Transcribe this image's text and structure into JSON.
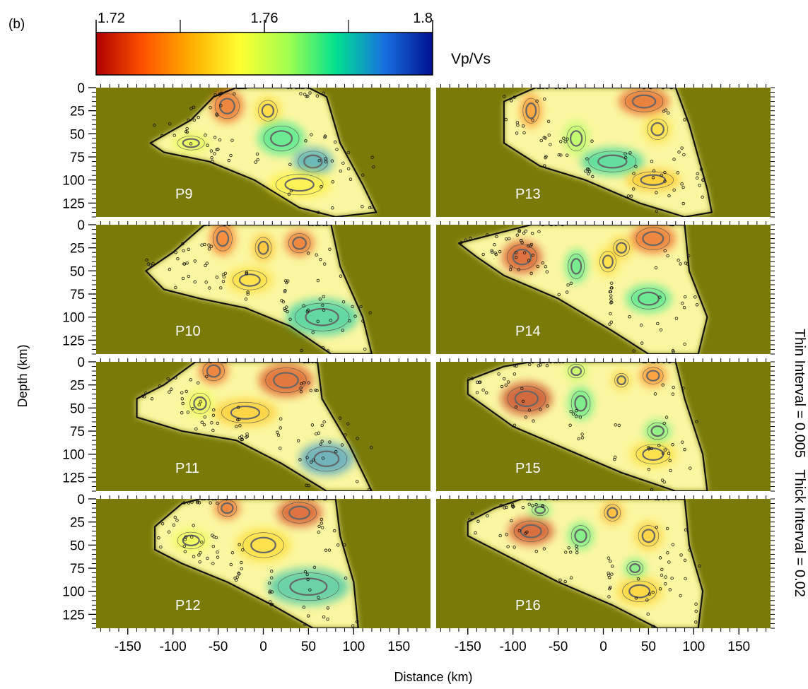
{
  "figure": {
    "label": "(b)",
    "colorbar": {
      "title": "Vp/Vs",
      "min": 1.72,
      "max": 1.8,
      "tick_labels": [
        "1.72",
        "1.76",
        "1.8"
      ],
      "tick_values": [
        1.72,
        1.76,
        1.8
      ],
      "minor_tick_values": [
        1.74,
        1.78
      ],
      "colormap": [
        "#b00000",
        "#ff5500",
        "#ffb000",
        "#ffff30",
        "#a0ff50",
        "#00e090",
        "#1870e0",
        "#001090"
      ]
    },
    "ylabel": "Depth (km)",
    "xlabel": "Distance (km)",
    "side_note": "Thin Interval = 0.005   Thick Interval = 0.02",
    "background_color": "#7a7a08"
  },
  "chart_data": {
    "type": "heatmap",
    "layout": "4 rows x 2 columns of depth cross-sections",
    "x_axis": {
      "range": [
        -185,
        185
      ],
      "tick_values": [
        -150,
        -100,
        -50,
        0,
        50,
        100,
        150
      ],
      "tick_labels": [
        "-150",
        "-100",
        "-50",
        "0",
        "50",
        "100",
        "150"
      ]
    },
    "y_axis": {
      "range": [
        0,
        140
      ],
      "inverted": true,
      "tick_values": [
        0,
        25,
        50,
        75,
        100,
        125
      ],
      "tick_labels": [
        "0",
        "25",
        "50",
        "75",
        "100",
        "125"
      ]
    },
    "panels": [
      {
        "name": "P9",
        "zone_outline": [
          [
            -125,
            60
          ],
          [
            -80,
            35
          ],
          [
            -55,
            10
          ],
          [
            -30,
            0
          ],
          [
            50,
            0
          ],
          [
            70,
            10
          ],
          [
            85,
            60
          ],
          [
            110,
            105
          ],
          [
            125,
            135
          ],
          [
            80,
            140
          ],
          [
            40,
            130
          ],
          [
            -10,
            100
          ],
          [
            -60,
            80
          ],
          [
            -110,
            70
          ]
        ],
        "anomalies": [
          {
            "x": -40,
            "y": 20,
            "rx": 18,
            "ry": 18,
            "value": 1.728
          },
          {
            "x": 5,
            "y": 25,
            "rx": 14,
            "ry": 15,
            "value": 1.747
          },
          {
            "x": 20,
            "y": 55,
            "rx": 26,
            "ry": 18,
            "value": 1.776
          },
          {
            "x": 55,
            "y": 80,
            "rx": 22,
            "ry": 15,
            "value": 1.785
          },
          {
            "x": 40,
            "y": 105,
            "rx": 35,
            "ry": 15,
            "value": 1.752
          },
          {
            "x": -80,
            "y": 60,
            "rx": 20,
            "ry": 10,
            "value": 1.758
          }
        ]
      },
      {
        "name": "P13",
        "zone_outline": [
          [
            -110,
            15
          ],
          [
            -75,
            0
          ],
          [
            80,
            0
          ],
          [
            95,
            40
          ],
          [
            115,
            110
          ],
          [
            120,
            135
          ],
          [
            90,
            140
          ],
          [
            40,
            125
          ],
          [
            -20,
            100
          ],
          [
            -70,
            85
          ],
          [
            -110,
            60
          ]
        ],
        "anomalies": [
          {
            "x": -80,
            "y": 25,
            "rx": 12,
            "ry": 18,
            "value": 1.735
          },
          {
            "x": 45,
            "y": 15,
            "rx": 28,
            "ry": 15,
            "value": 1.727
          },
          {
            "x": -30,
            "y": 55,
            "rx": 14,
            "ry": 18,
            "value": 1.766
          },
          {
            "x": 10,
            "y": 80,
            "rx": 35,
            "ry": 15,
            "value": 1.779
          },
          {
            "x": 55,
            "y": 100,
            "rx": 30,
            "ry": 12,
            "value": 1.744
          },
          {
            "x": 60,
            "y": 45,
            "rx": 15,
            "ry": 15,
            "value": 1.748
          }
        ]
      },
      {
        "name": "P10",
        "zone_outline": [
          [
            -130,
            50
          ],
          [
            -100,
            30
          ],
          [
            -65,
            0
          ],
          [
            75,
            0
          ],
          [
            85,
            45
          ],
          [
            110,
            100
          ],
          [
            120,
            140
          ],
          [
            75,
            140
          ],
          [
            30,
            110
          ],
          [
            -20,
            90
          ],
          [
            -70,
            80
          ],
          [
            -110,
            70
          ]
        ],
        "anomalies": [
          {
            "x": -45,
            "y": 15,
            "rx": 14,
            "ry": 18,
            "value": 1.73
          },
          {
            "x": 40,
            "y": 20,
            "rx": 16,
            "ry": 14,
            "value": 1.728
          },
          {
            "x": 0,
            "y": 25,
            "rx": 12,
            "ry": 15,
            "value": 1.742
          },
          {
            "x": 65,
            "y": 100,
            "rx": 40,
            "ry": 20,
            "value": 1.78
          },
          {
            "x": -15,
            "y": 60,
            "rx": 25,
            "ry": 14,
            "value": 1.748
          }
        ]
      },
      {
        "name": "P14",
        "zone_outline": [
          [
            -160,
            20
          ],
          [
            -120,
            10
          ],
          [
            -80,
            0
          ],
          [
            90,
            0
          ],
          [
            95,
            50
          ],
          [
            115,
            100
          ],
          [
            105,
            140
          ],
          [
            50,
            140
          ],
          [
            10,
            115
          ],
          [
            -50,
            80
          ],
          [
            -110,
            55
          ],
          [
            -140,
            35
          ]
        ],
        "anomalies": [
          {
            "x": -90,
            "y": 35,
            "rx": 22,
            "ry": 18,
            "value": 1.724
          },
          {
            "x": 55,
            "y": 15,
            "rx": 25,
            "ry": 16,
            "value": 1.728
          },
          {
            "x": -30,
            "y": 45,
            "rx": 12,
            "ry": 18,
            "value": 1.775
          },
          {
            "x": 5,
            "y": 40,
            "rx": 12,
            "ry": 15,
            "value": 1.748
          },
          {
            "x": 50,
            "y": 80,
            "rx": 25,
            "ry": 15,
            "value": 1.776
          },
          {
            "x": 20,
            "y": 25,
            "rx": 12,
            "ry": 12,
            "value": 1.745
          }
        ]
      },
      {
        "name": "P11",
        "zone_outline": [
          [
            -140,
            40
          ],
          [
            -110,
            25
          ],
          [
            -75,
            0
          ],
          [
            60,
            0
          ],
          [
            65,
            40
          ],
          [
            95,
            90
          ],
          [
            120,
            140
          ],
          [
            70,
            140
          ],
          [
            20,
            110
          ],
          [
            -30,
            85
          ],
          [
            -90,
            75
          ],
          [
            -140,
            60
          ]
        ],
        "anomalies": [
          {
            "x": -55,
            "y": 10,
            "rx": 16,
            "ry": 14,
            "value": 1.728
          },
          {
            "x": 25,
            "y": 20,
            "rx": 30,
            "ry": 18,
            "value": 1.725
          },
          {
            "x": 70,
            "y": 105,
            "rx": 30,
            "ry": 18,
            "value": 1.786
          },
          {
            "x": -20,
            "y": 55,
            "rx": 35,
            "ry": 15,
            "value": 1.745
          },
          {
            "x": -70,
            "y": 45,
            "rx": 15,
            "ry": 15,
            "value": 1.757
          }
        ]
      },
      {
        "name": "P15",
        "zone_outline": [
          [
            -150,
            20
          ],
          [
            -110,
            5
          ],
          [
            -80,
            0
          ],
          [
            80,
            0
          ],
          [
            90,
            40
          ],
          [
            110,
            100
          ],
          [
            115,
            140
          ],
          [
            80,
            140
          ],
          [
            20,
            120
          ],
          [
            -40,
            95
          ],
          [
            -100,
            70
          ],
          [
            -150,
            35
          ]
        ],
        "anomalies": [
          {
            "x": -85,
            "y": 40,
            "rx": 28,
            "ry": 18,
            "value": 1.721
          },
          {
            "x": -25,
            "y": 45,
            "rx": 14,
            "ry": 18,
            "value": 1.774
          },
          {
            "x": -30,
            "y": 10,
            "rx": 12,
            "ry": 10,
            "value": 1.765
          },
          {
            "x": 55,
            "y": 15,
            "rx": 15,
            "ry": 12,
            "value": 1.734
          },
          {
            "x": 20,
            "y": 20,
            "rx": 10,
            "ry": 10,
            "value": 1.745
          },
          {
            "x": 55,
            "y": 100,
            "rx": 25,
            "ry": 14,
            "value": 1.748
          },
          {
            "x": 60,
            "y": 75,
            "rx": 15,
            "ry": 12,
            "value": 1.772
          }
        ]
      },
      {
        "name": "P12",
        "zone_outline": [
          [
            -120,
            30
          ],
          [
            -90,
            5
          ],
          [
            -70,
            0
          ],
          [
            80,
            0
          ],
          [
            85,
            40
          ],
          [
            100,
            90
          ],
          [
            105,
            140
          ],
          [
            55,
            140
          ],
          [
            10,
            115
          ],
          [
            -40,
            90
          ],
          [
            -90,
            70
          ],
          [
            -120,
            55
          ]
        ],
        "anomalies": [
          {
            "x": -40,
            "y": 10,
            "rx": 14,
            "ry": 12,
            "value": 1.728
          },
          {
            "x": 40,
            "y": 15,
            "rx": 25,
            "ry": 15,
            "value": 1.724
          },
          {
            "x": 50,
            "y": 95,
            "rx": 45,
            "ry": 20,
            "value": 1.781
          },
          {
            "x": 0,
            "y": 50,
            "rx": 30,
            "ry": 18,
            "value": 1.748
          },
          {
            "x": -80,
            "y": 45,
            "rx": 20,
            "ry": 12,
            "value": 1.757
          }
        ]
      },
      {
        "name": "P16",
        "zone_outline": [
          [
            -150,
            25
          ],
          [
            -120,
            10
          ],
          [
            -90,
            0
          ],
          [
            90,
            0
          ],
          [
            95,
            50
          ],
          [
            110,
            100
          ],
          [
            105,
            140
          ],
          [
            60,
            140
          ],
          [
            10,
            115
          ],
          [
            -50,
            90
          ],
          [
            -110,
            60
          ],
          [
            -150,
            40
          ]
        ],
        "anomalies": [
          {
            "x": -80,
            "y": 35,
            "rx": 25,
            "ry": 15,
            "value": 1.723
          },
          {
            "x": -70,
            "y": 12,
            "rx": 12,
            "ry": 8,
            "value": 1.772
          },
          {
            "x": -25,
            "y": 40,
            "rx": 14,
            "ry": 15,
            "value": 1.773
          },
          {
            "x": 10,
            "y": 15,
            "rx": 12,
            "ry": 12,
            "value": 1.74
          },
          {
            "x": 50,
            "y": 40,
            "rx": 15,
            "ry": 15,
            "value": 1.745
          },
          {
            "x": 40,
            "y": 100,
            "rx": 25,
            "ry": 15,
            "value": 1.746
          },
          {
            "x": 35,
            "y": 75,
            "rx": 12,
            "ry": 10,
            "value": 1.773
          }
        ]
      }
    ]
  }
}
